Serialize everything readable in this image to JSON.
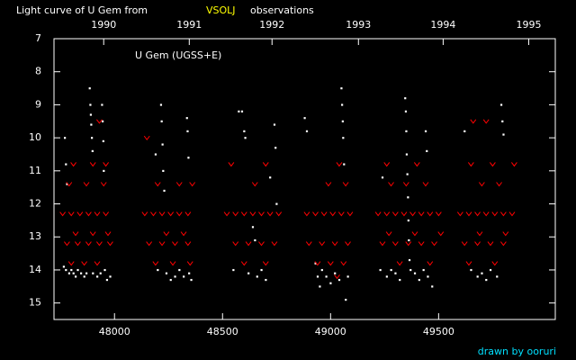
{
  "chart_data": {
    "type": "scatter",
    "title": "Light curve of U Gem from",
    "source": "VSOLJ",
    "title_suffix": "observations",
    "annotation": "U Gem (UGSS+E)",
    "credit": "drawn by ooruri",
    "xlim": [
      47720,
      50040
    ],
    "ylim": [
      15.5,
      7
    ],
    "y_inverted": true,
    "xticks": [
      48000,
      48500,
      49000,
      49500
    ],
    "yticks": [
      7,
      8,
      9,
      10,
      11,
      12,
      13,
      14,
      15
    ],
    "x2ticks": [
      {
        "value": 47950,
        "label": "1990"
      },
      {
        "value": 48346,
        "label": "1991"
      },
      {
        "value": 48729,
        "label": "1992"
      },
      {
        "value": 49129,
        "label": "1993"
      },
      {
        "value": 49521,
        "label": "1994"
      },
      {
        "value": 49917,
        "label": "1995"
      }
    ],
    "series": [
      {
        "color": "#ffffff",
        "marker": "dot",
        "x": [
          47770,
          47775,
          47780,
          47765,
          47775,
          47790,
          47800,
          47810,
          47820,
          47830,
          47845,
          47860,
          47870,
          47885,
          47888,
          47890,
          47892,
          47895,
          47898,
          47900,
          47920,
          47935,
          47942,
          47945,
          47948,
          47950,
          47955,
          47965,
          47980,
          48190,
          48200,
          48215,
          48218,
          48222,
          48225,
          48230,
          48240,
          48260,
          48280,
          48300,
          48320,
          48335,
          48338,
          48342,
          48345,
          48355,
          48550,
          48575,
          48590,
          48600,
          48605,
          48620,
          48640,
          48650,
          48660,
          48680,
          48700,
          48720,
          48740,
          48745,
          48750,
          48880,
          48890,
          48930,
          48940,
          48950,
          48960,
          48980,
          49000,
          49020,
          49040,
          49050,
          49053,
          49056,
          49058,
          49062,
          49070,
          49080,
          49230,
          49240,
          49260,
          49280,
          49300,
          49320,
          49345,
          49348,
          49350,
          49352,
          49355,
          49358,
          49360,
          49362,
          49365,
          49370,
          49390,
          49410,
          49430,
          49450,
          49470,
          49440,
          49445,
          49620,
          49650,
          49680,
          49700,
          49720,
          49740,
          49770,
          49790,
          49795,
          49800
        ],
        "values": [
          10.0,
          10.8,
          11.4,
          13.9,
          14.0,
          14.1,
          14.0,
          14.1,
          14.2,
          14.0,
          14.1,
          14.2,
          14.1,
          8.5,
          9.0,
          9.3,
          9.6,
          10.0,
          10.4,
          14.1,
          14.2,
          14.1,
          9.0,
          9.5,
          10.1,
          11.0,
          14.0,
          14.3,
          14.2,
          10.5,
          14.0,
          9.0,
          9.5,
          10.2,
          11.0,
          11.6,
          14.1,
          14.3,
          14.2,
          14.0,
          14.2,
          9.4,
          9.8,
          10.6,
          14.1,
          14.3,
          14.0,
          9.2,
          9.2,
          9.8,
          10.0,
          14.1,
          12.7,
          13.1,
          14.2,
          14.0,
          14.3,
          11.2,
          9.6,
          10.3,
          12.0,
          9.4,
          9.8,
          13.8,
          14.2,
          14.5,
          14.0,
          14.2,
          14.4,
          14.1,
          14.3,
          8.5,
          9.0,
          9.5,
          10.0,
          10.8,
          14.9,
          14.2,
          14.0,
          11.2,
          14.2,
          14.0,
          14.1,
          14.3,
          8.8,
          9.2,
          9.8,
          10.5,
          11.1,
          11.8,
          12.5,
          13.1,
          13.7,
          14.0,
          14.1,
          14.3,
          14.0,
          14.2,
          14.5,
          9.8,
          10.4,
          9.8,
          14.0,
          14.2,
          14.1,
          14.3,
          14.0,
          14.2,
          9.0,
          9.5,
          9.9
        ]
      },
      {
        "color": "#ff0000",
        "marker": "v",
        "x": [
          47760,
          47800,
          47840,
          47880,
          47920,
          47960,
          47790,
          47870,
          47950,
          47810,
          47900,
          47960,
          47780,
          47830,
          47880,
          47930,
          47980,
          47800,
          47860,
          47920,
          47820,
          47900,
          47970,
          47930,
          48140,
          48180,
          48220,
          48260,
          48300,
          48340,
          48160,
          48220,
          48280,
          48340,
          48200,
          48300,
          48360,
          48190,
          48270,
          48350,
          48150,
          48240,
          48320,
          48520,
          48560,
          48600,
          48640,
          48680,
          48720,
          48760,
          48560,
          48620,
          48680,
          48740,
          48600,
          48700,
          48540,
          48700,
          48650,
          48890,
          48930,
          48970,
          49010,
          49050,
          49090,
          48900,
          48960,
          49020,
          49080,
          48940,
          49000,
          49060,
          48990,
          49070,
          49040,
          49030,
          49220,
          49260,
          49300,
          49340,
          49380,
          49420,
          49460,
          49500,
          49240,
          49300,
          49360,
          49420,
          49480,
          49280,
          49350,
          49440,
          49260,
          49400,
          49320,
          49460,
          49270,
          49390,
          49510,
          49600,
          49640,
          49680,
          49720,
          49760,
          49800,
          49840,
          49620,
          49680,
          49740,
          49800,
          49660,
          49720,
          49650,
          49750,
          49850,
          49700,
          49780,
          49640,
          49760,
          49690,
          49810
        ],
        "values": [
          12.3,
          12.3,
          12.3,
          12.3,
          12.3,
          12.3,
          11.4,
          11.4,
          11.4,
          10.8,
          10.8,
          10.8,
          13.2,
          13.2,
          13.2,
          13.2,
          13.2,
          13.8,
          13.8,
          13.8,
          12.9,
          12.9,
          12.9,
          9.5,
          12.3,
          12.3,
          12.3,
          12.3,
          12.3,
          12.3,
          13.2,
          13.2,
          13.2,
          13.2,
          11.4,
          11.4,
          11.4,
          13.8,
          13.8,
          13.8,
          10.0,
          12.9,
          12.9,
          12.3,
          12.3,
          12.3,
          12.3,
          12.3,
          12.3,
          12.3,
          13.2,
          13.2,
          13.2,
          13.2,
          13.8,
          13.8,
          10.8,
          10.8,
          11.4,
          12.3,
          12.3,
          12.3,
          12.3,
          12.3,
          12.3,
          13.2,
          13.2,
          13.2,
          13.2,
          13.8,
          13.8,
          13.8,
          11.4,
          11.4,
          10.8,
          14.2,
          12.3,
          12.3,
          12.3,
          12.3,
          12.3,
          12.3,
          12.3,
          12.3,
          13.2,
          13.2,
          13.2,
          13.2,
          13.2,
          11.4,
          11.4,
          11.4,
          10.8,
          10.8,
          13.8,
          13.8,
          12.9,
          12.9,
          12.9,
          12.3,
          12.3,
          12.3,
          12.3,
          12.3,
          12.3,
          12.3,
          13.2,
          13.2,
          13.2,
          13.2,
          9.5,
          9.5,
          10.8,
          10.8,
          10.8,
          11.4,
          11.4,
          13.8,
          13.8,
          12.9,
          12.9
        ]
      }
    ]
  }
}
